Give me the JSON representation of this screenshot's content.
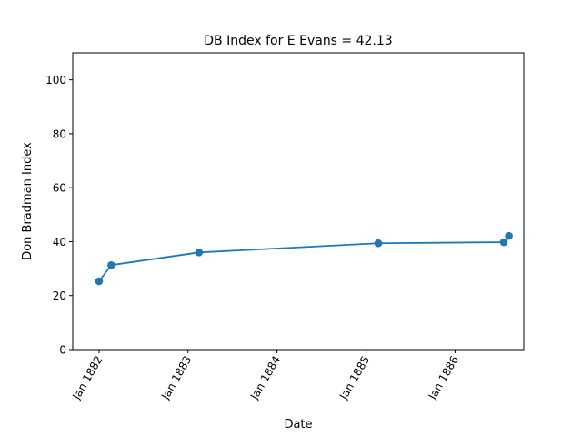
{
  "chart_data": {
    "type": "line",
    "title": "DB Index for E Evans = 42.13",
    "xlabel": "Date",
    "ylabel": "Don Bradman Index",
    "x_tick_labels": [
      "Jan 1882",
      "Jan 1883",
      "Jan 1884",
      "Jan 1885",
      "Jan 1886"
    ],
    "x_tick_dates": [
      "1882-01-01",
      "1883-01-01",
      "1884-01-01",
      "1885-01-01",
      "1886-01-01"
    ],
    "xlim": [
      "1881-09-15",
      "1886-10-10"
    ],
    "ylim": [
      0,
      110
    ],
    "y_ticks": [
      0,
      20,
      40,
      60,
      80,
      100
    ],
    "grid": false,
    "series": [
      {
        "color": "#1f77b4",
        "x": [
          "1882-01-01",
          "1882-02-20",
          "1883-02-15",
          "1885-02-20",
          "1886-07-20",
          "1886-08-10"
        ],
        "y": [
          25.3,
          31.3,
          36.0,
          39.4,
          39.8,
          42.13
        ]
      }
    ]
  }
}
